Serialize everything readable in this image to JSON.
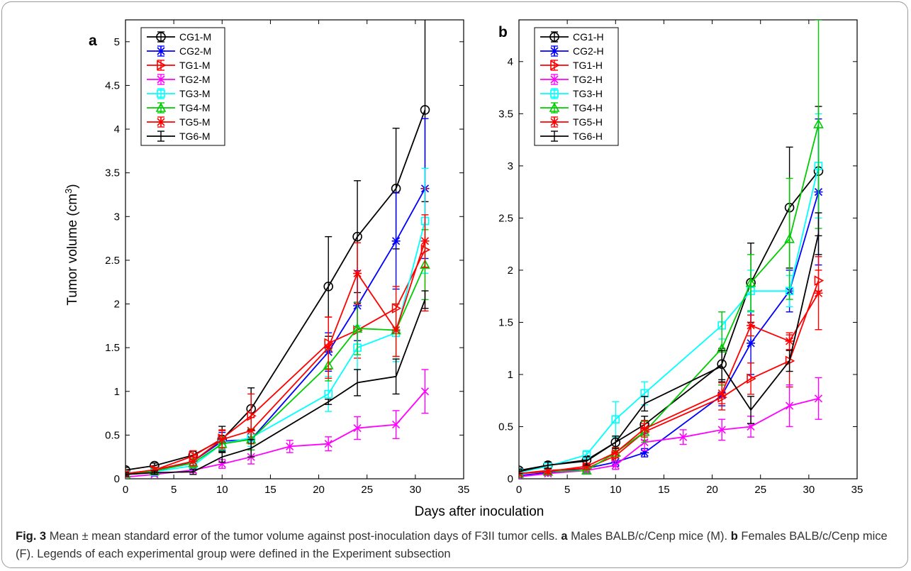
{
  "caption": {
    "fig_label": "Fig. 3",
    "text_1": "Mean ± mean standard error of the tumor volume against post-inoculation days of F3II tumor cells.",
    "panel_a_letter": "a",
    "text_2": "Males BALB/c/Cenp mice (M).",
    "panel_b_letter": "b",
    "text_3": "Females BALB/c/Cenp mice (F). Legends of each experimental group were defined in the Experiment subsection"
  },
  "shared_xlabel": "Days after inoculation",
  "shared_ylabel": "Tumor volume (cm³)",
  "colors": {
    "black": "#000000",
    "blue": "#0000ff",
    "red": "#ff0000",
    "magenta": "#ff00ff",
    "cyan": "#00ffff",
    "green": "#00cc00"
  },
  "chart_data": [
    {
      "type": "line",
      "panel_label": "a",
      "title": "",
      "xlabel": "Days after inoculation",
      "ylabel": "Tumor volume (cm³)",
      "xlim": [
        0,
        35
      ],
      "ylim": [
        0,
        5.25
      ],
      "xticks": [
        0,
        5,
        10,
        15,
        20,
        25,
        30,
        35
      ],
      "yticks": [
        0,
        0.5,
        1,
        1.5,
        2,
        2.5,
        3,
        3.5,
        4,
        4.5,
        5
      ],
      "grid": false,
      "legend_position": "top-left",
      "series": [
        {
          "name": "CG1-M",
          "color": "#000000",
          "marker": "circle",
          "x": [
            0,
            3,
            7,
            10,
            13,
            21,
            24,
            28,
            31
          ],
          "y": [
            0.1,
            0.15,
            0.27,
            0.45,
            0.8,
            2.2,
            2.77,
            3.32,
            4.22
          ],
          "err": [
            0.03,
            0.03,
            0.05,
            0.15,
            0.24,
            0.57,
            0.64,
            0.69,
            1.05
          ]
        },
        {
          "name": "CG2-M",
          "color": "#0000ff",
          "marker": "star",
          "x": [
            0,
            3,
            7,
            10,
            13,
            21,
            24,
            28,
            31
          ],
          "y": [
            0.05,
            0.08,
            0.2,
            0.43,
            0.45,
            1.45,
            1.98,
            2.72,
            3.32
          ],
          "err": [
            0.02,
            0.03,
            0.05,
            0.1,
            0.12,
            0.22,
            0.4,
            0.55,
            0.8
          ]
        },
        {
          "name": "TG1-M",
          "color": "#ff0000",
          "marker": "triangle-right",
          "x": [
            0,
            3,
            7,
            10,
            13,
            21,
            24,
            28,
            31
          ],
          "y": [
            0.06,
            0.1,
            0.26,
            0.46,
            0.72,
            1.55,
            1.7,
            1.95,
            2.62
          ],
          "err": [
            0.02,
            0.03,
            0.06,
            0.1,
            0.25,
            0.3,
            0.32,
            0.25,
            0.7
          ]
        },
        {
          "name": "TG2-M",
          "color": "#ff00ff",
          "marker": "x",
          "x": [
            0,
            3,
            7,
            10,
            13,
            17,
            21,
            24,
            28,
            31
          ],
          "y": [
            0.02,
            0.05,
            0.1,
            0.17,
            0.25,
            0.37,
            0.4,
            0.58,
            0.62,
            1.0
          ],
          "err": [
            0.02,
            0.02,
            0.03,
            0.05,
            0.08,
            0.07,
            0.08,
            0.13,
            0.16,
            0.25
          ]
        },
        {
          "name": "TG3-M",
          "color": "#00ffff",
          "marker": "square",
          "x": [
            0,
            3,
            7,
            10,
            13,
            21,
            24,
            28,
            31
          ],
          "y": [
            0.05,
            0.08,
            0.15,
            0.4,
            0.47,
            0.97,
            1.5,
            1.67,
            2.95
          ],
          "err": [
            0.02,
            0.03,
            0.04,
            0.08,
            0.1,
            0.2,
            0.25,
            0.33,
            0.6
          ]
        },
        {
          "name": "TG4-M",
          "color": "#00cc00",
          "marker": "triangle-up",
          "x": [
            0,
            3,
            7,
            10,
            13,
            21,
            24,
            28,
            31
          ],
          "y": [
            0.05,
            0.09,
            0.18,
            0.4,
            0.45,
            1.3,
            1.72,
            1.7,
            2.45
          ],
          "err": [
            0.02,
            0.03,
            0.05,
            0.08,
            0.12,
            0.18,
            0.3,
            0.3,
            0.4
          ]
        },
        {
          "name": "TG5-M",
          "color": "#ff0000",
          "marker": "star",
          "x": [
            0,
            3,
            7,
            10,
            13,
            21,
            24,
            28,
            31
          ],
          "y": [
            0.06,
            0.1,
            0.2,
            0.45,
            0.55,
            1.5,
            2.35,
            1.7,
            2.72
          ],
          "err": [
            0.02,
            0.03,
            0.05,
            0.1,
            0.15,
            0.35,
            0.35,
            0.3,
            0.3
          ]
        },
        {
          "name": "TG6-M",
          "color": "#000000",
          "marker": "none",
          "x": [
            0,
            3,
            7,
            10,
            13,
            21,
            24,
            28,
            31
          ],
          "y": [
            0.05,
            0.07,
            0.08,
            0.25,
            0.35,
            0.88,
            1.1,
            1.17,
            2.05
          ],
          "err": [
            0.02,
            0.02,
            0.03,
            0.06,
            0.1,
            0.03,
            0.15,
            0.2,
            0.1
          ]
        }
      ]
    },
    {
      "type": "line",
      "panel_label": "b",
      "title": "",
      "xlabel": "Days after inoculation",
      "ylabel": "",
      "xlim": [
        0,
        35
      ],
      "ylim": [
        0,
        4.4
      ],
      "xticks": [
        0,
        5,
        10,
        15,
        20,
        25,
        30,
        35
      ],
      "yticks": [
        0,
        0.5,
        1,
        1.5,
        2,
        2.5,
        3,
        3.5,
        4
      ],
      "grid": false,
      "legend_position": "top-left",
      "series": [
        {
          "name": "CG1-H",
          "color": "#000000",
          "marker": "circle",
          "x": [
            0,
            3,
            7,
            10,
            13,
            21,
            24,
            28,
            31
          ],
          "y": [
            0.08,
            0.13,
            0.18,
            0.35,
            0.52,
            1.1,
            1.88,
            2.6,
            2.95
          ],
          "err": [
            0.02,
            0.03,
            0.04,
            0.05,
            0.08,
            0.15,
            0.38,
            0.58,
            0.62
          ]
        },
        {
          "name": "CG2-H",
          "color": "#0000ff",
          "marker": "star",
          "x": [
            0,
            3,
            7,
            10,
            13,
            21,
            24,
            28,
            31
          ],
          "y": [
            0.03,
            0.06,
            0.1,
            0.16,
            0.25,
            0.8,
            1.3,
            1.8,
            2.75
          ],
          "err": [
            0.02,
            0.02,
            0.03,
            0.04,
            0.04,
            0.1,
            0.3,
            0.2,
            0.7
          ]
        },
        {
          "name": "TG1-H",
          "color": "#ff0000",
          "marker": "triangle-right",
          "x": [
            0,
            3,
            7,
            10,
            13,
            21,
            24,
            28,
            31
          ],
          "y": [
            0.05,
            0.08,
            0.1,
            0.22,
            0.45,
            0.78,
            0.96,
            1.13,
            1.9
          ],
          "err": [
            0.02,
            0.02,
            0.03,
            0.05,
            0.08,
            0.12,
            0.15,
            0.25,
            0.1
          ]
        },
        {
          "name": "TG2-H",
          "color": "#ff00ff",
          "marker": "x",
          "x": [
            0,
            3,
            7,
            10,
            13,
            17,
            21,
            24,
            28,
            31
          ],
          "y": [
            0.02,
            0.05,
            0.08,
            0.13,
            0.35,
            0.4,
            0.47,
            0.5,
            0.7,
            0.77
          ],
          "err": [
            0.02,
            0.02,
            0.02,
            0.04,
            0.08,
            0.07,
            0.1,
            0.1,
            0.2,
            0.2
          ]
        },
        {
          "name": "TG3-H",
          "color": "#00ffff",
          "marker": "square",
          "x": [
            0,
            3,
            7,
            10,
            13,
            21,
            24,
            28,
            31
          ],
          "y": [
            0.06,
            0.12,
            0.23,
            0.57,
            0.82,
            1.47,
            1.8,
            1.8,
            3.0
          ],
          "err": [
            0.02,
            0.03,
            0.04,
            0.17,
            0.11,
            0.13,
            0.2,
            0.15,
            0.5
          ]
        },
        {
          "name": "TG4-H",
          "color": "#00cc00",
          "marker": "triangle-up",
          "x": [
            0,
            3,
            7,
            10,
            13,
            21,
            24,
            28,
            31
          ],
          "y": [
            0.05,
            0.07,
            0.08,
            0.25,
            0.45,
            1.25,
            1.88,
            2.3,
            3.4
          ],
          "err": [
            0.02,
            0.02,
            0.03,
            0.05,
            0.1,
            0.35,
            0.27,
            0.58,
            1.0
          ]
        },
        {
          "name": "TG5-H",
          "color": "#ff0000",
          "marker": "star",
          "x": [
            0,
            3,
            7,
            10,
            13,
            21,
            24,
            28,
            31
          ],
          "y": [
            0.05,
            0.07,
            0.12,
            0.25,
            0.48,
            0.82,
            1.47,
            1.32,
            1.78
          ],
          "err": [
            0.02,
            0.02,
            0.03,
            0.05,
            0.08,
            0.1,
            0.1,
            0.08,
            0.35
          ]
        },
        {
          "name": "TG6-H",
          "color": "#000000",
          "marker": "none",
          "x": [
            0,
            3,
            7,
            10,
            13,
            21,
            24,
            28,
            31
          ],
          "y": [
            0.07,
            0.13,
            0.17,
            0.35,
            0.72,
            1.08,
            0.66,
            1.13,
            2.35
          ],
          "err": [
            0.02,
            0.03,
            0.04,
            0.06,
            0.07,
            0.15,
            0.13,
            0.1,
            0.2
          ]
        }
      ]
    }
  ]
}
